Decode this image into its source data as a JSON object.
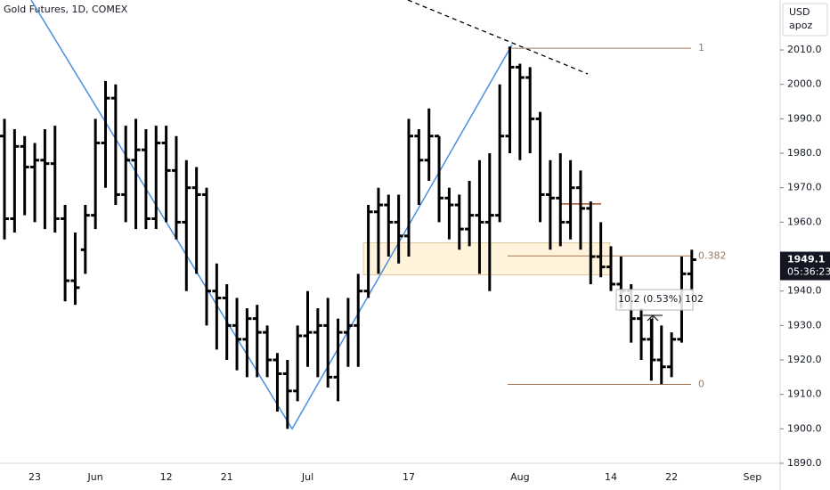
{
  "chart_data": {
    "type": "ohlc",
    "title": "Gold Futures, 1D, COMEX",
    "currency": "USD",
    "unit": "apoz",
    "categories": [
      null,
      null,
      null,
      "23",
      null,
      null,
      null,
      null,
      null,
      "Jun",
      null,
      null,
      null,
      null,
      null,
      null,
      "12",
      null,
      null,
      null,
      null,
      null,
      "21",
      null,
      null,
      null,
      null,
      null,
      null,
      null,
      "Jul",
      null,
      null,
      null,
      null,
      null,
      null,
      null,
      null,
      null,
      "17",
      null,
      null,
      null,
      null,
      null,
      null,
      null,
      null,
      null,
      null,
      "Aug",
      null,
      null,
      null,
      null,
      null,
      null,
      null,
      null,
      "14",
      null,
      null,
      null,
      null,
      null,
      "22",
      null,
      null,
      null,
      null,
      null,
      null,
      null,
      "Sep",
      null,
      null
    ],
    "open": [
      1985,
      1961,
      1982,
      1976,
      1978,
      1977,
      1961,
      1943,
      1952,
      1962,
      1983,
      1996,
      1968,
      1978,
      1981,
      1961,
      1983,
      1975,
      1960,
      1970,
      1968,
      1940,
      1938,
      1930,
      1926,
      1932,
      1928,
      1920,
      1916,
      1911,
      1927,
      1928,
      1930,
      1915,
      1928,
      1930,
      1940,
      1963,
      1965,
      1960,
      1956,
      1985,
      1978,
      1985,
      1967,
      1965,
      1958,
      1962,
      1960,
      1962,
      1985,
      2005,
      2002,
      1990,
      1968,
      1967,
      1960,
      1970,
      1964,
      1950,
      1947,
      1942,
      1940,
      1932,
      1926,
      1920,
      1918,
      1926,
      1945,
      null,
      null,
      null,
      null,
      null,
      null,
      null,
      null
    ],
    "high": [
      1990,
      1987,
      1985,
      1983,
      1987,
      1988,
      1965,
      1957,
      1965,
      1990,
      2001,
      2000,
      1988,
      1990,
      1987,
      1988,
      1988,
      1985,
      1978,
      1976,
      1970,
      1948,
      1942,
      1938,
      1935,
      1936,
      1930,
      1922,
      1920,
      1930,
      1940,
      1935,
      1938,
      1932,
      1938,
      1945,
      1965,
      1970,
      1968,
      1968,
      1990,
      1987,
      1993,
      1985,
      1970,
      1968,
      1972,
      1978,
      1980,
      2000,
      2011,
      2006,
      2005,
      1992,
      1978,
      1980,
      1978,
      1975,
      1966,
      1960,
      1953,
      1950,
      1942,
      1935,
      1932,
      1930,
      1928,
      1950,
      1952,
      null,
      null,
      null,
      null,
      null,
      null,
      null,
      null
    ],
    "low": [
      1955,
      1957,
      1962,
      1960,
      1958,
      1957,
      1937,
      1936,
      1945,
      1958,
      1970,
      1965,
      1960,
      1958,
      1958,
      1958,
      1960,
      1955,
      1940,
      1945,
      1930,
      1923,
      1920,
      1917,
      1915,
      1915,
      1915,
      1905,
      1900,
      1908,
      1918,
      1915,
      1912,
      1908,
      1918,
      1918,
      1938,
      1945,
      1950,
      1948,
      1950,
      1965,
      1972,
      1960,
      1955,
      1952,
      1953,
      1945,
      1940,
      1960,
      1980,
      1978,
      1980,
      1960,
      1952,
      1953,
      1955,
      1952,
      1942,
      1944,
      1940,
      1935,
      1925,
      1920,
      1914,
      1913,
      1915,
      1925,
      1940,
      null,
      null,
      null,
      null,
      null,
      null,
      null,
      null
    ],
    "close": [
      1961,
      1982,
      1976,
      1978,
      1977,
      1961,
      1943,
      1941,
      1962,
      1983,
      1996,
      1968,
      1978,
      1981,
      1961,
      1983,
      1975,
      1960,
      1970,
      1968,
      1940,
      1938,
      1930,
      1926,
      1932,
      1928,
      1920,
      1916,
      1911,
      1927,
      1928,
      1930,
      1915,
      1928,
      1930,
      1940,
      1963,
      1965,
      1960,
      1956,
      1985,
      1978,
      1985,
      1967,
      1965,
      1958,
      1962,
      1960,
      1962,
      1985,
      2005,
      2002,
      1990,
      1968,
      1967,
      1960,
      1970,
      1964,
      1950,
      1947,
      1942,
      1940,
      1932,
      1926,
      1920,
      1918,
      1926,
      1945,
      1949.1,
      null,
      null,
      null,
      null,
      null,
      null,
      null,
      null
    ],
    "ylim": [
      1890,
      2024.5
    ],
    "yticks": [
      {
        "value": 1890,
        "label": "1890.0"
      },
      {
        "value": 1900,
        "label": "1900.0"
      },
      {
        "value": 1910,
        "label": "1910.0"
      },
      {
        "value": 1920,
        "label": "1920.0"
      },
      {
        "value": 1930,
        "label": "1930.0"
      },
      {
        "value": 1940,
        "label": "1940.0"
      },
      {
        "value": 1950,
        "label": "1950.0"
      },
      {
        "value": 1960,
        "label": "1960.0"
      },
      {
        "value": 1970,
        "label": "1970.0"
      },
      {
        "value": 1980,
        "label": "1980.0"
      },
      {
        "value": 1990,
        "label": "1990.0"
      },
      {
        "value": 2000,
        "label": "2000.0"
      },
      {
        "value": 2010,
        "label": "2010.0"
      }
    ],
    "fib_levels": [
      {
        "value": 2010.5,
        "label": "1"
      },
      {
        "value": 1950.2,
        "label": "0.382"
      },
      {
        "value": 1912.9,
        "label": "0"
      }
    ],
    "level_line": 1965.3,
    "zone": [
      1944.7,
      1954
    ],
    "zigzag": [
      2024.5,
      1900,
      2011.5
    ],
    "price_label": "1949.1",
    "countdown": "05:36:23",
    "measure_label": "10.2 (0.53%) 102",
    "bar_color": "#000000",
    "zigzag_color": "#4a90e2",
    "fib_color": "#a0785a"
  }
}
